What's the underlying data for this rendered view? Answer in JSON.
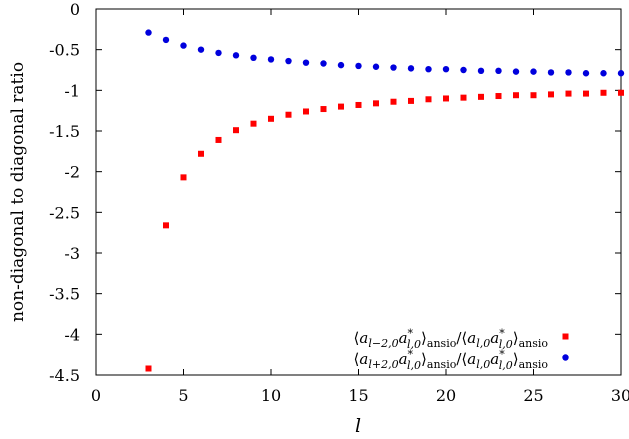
{
  "chart_data": {
    "type": "scatter",
    "title": "",
    "xlabel": "l",
    "ylabel": "non-diagonal to diagonal ratio",
    "xlim": [
      0,
      30
    ],
    "ylim": [
      -4.5,
      0
    ],
    "xticks": [
      0,
      5,
      10,
      15,
      20,
      25,
      30
    ],
    "yticks": [
      0,
      -0.5,
      -1,
      -1.5,
      -2,
      -2.5,
      -3,
      -3.5,
      -4,
      -4.5
    ],
    "xtick_labels": [
      "0",
      "5",
      "10",
      "15",
      "20",
      "25",
      "30"
    ],
    "ytick_labels": [
      "0",
      "-0.5",
      "-1",
      "-1.5",
      "-2",
      "-2.5",
      "-3",
      "-3.5",
      "-4",
      "-4.5"
    ],
    "grid": false,
    "legend_position": "bottom-right",
    "series": [
      {
        "name": "⟨a_{l−2,0} a*_{l,0}⟩_ansio / ⟨a_{l,0} a*_{l,0}⟩_ansio",
        "marker": "square",
        "color": "#ff0000",
        "x": [
          3,
          4,
          5,
          6,
          7,
          8,
          9,
          10,
          11,
          12,
          13,
          14,
          15,
          16,
          17,
          18,
          19,
          20,
          21,
          22,
          23,
          24,
          25,
          26,
          27,
          28,
          29,
          30
        ],
        "y": [
          -4.42,
          -2.66,
          -2.07,
          -1.78,
          -1.61,
          -1.49,
          -1.41,
          -1.35,
          -1.3,
          -1.26,
          -1.23,
          -1.2,
          -1.18,
          -1.16,
          -1.14,
          -1.13,
          -1.11,
          -1.1,
          -1.09,
          -1.08,
          -1.07,
          -1.06,
          -1.06,
          -1.05,
          -1.04,
          -1.04,
          -1.03,
          -1.03
        ]
      },
      {
        "name": "⟨a_{l+2,0} a*_{l,0}⟩_ansio / ⟨a_{l,0} a*_{l,0}⟩_ansio",
        "marker": "circle",
        "color": "#0000dd",
        "x": [
          3,
          4,
          5,
          6,
          7,
          8,
          9,
          10,
          11,
          12,
          13,
          14,
          15,
          16,
          17,
          18,
          19,
          20,
          21,
          22,
          23,
          24,
          25,
          26,
          27,
          28,
          29,
          30
        ],
        "y": [
          -0.29,
          -0.38,
          -0.45,
          -0.5,
          -0.54,
          -0.57,
          -0.6,
          -0.62,
          -0.64,
          -0.66,
          -0.67,
          -0.69,
          -0.7,
          -0.71,
          -0.72,
          -0.73,
          -0.74,
          -0.74,
          -0.75,
          -0.76,
          -0.76,
          -0.77,
          -0.77,
          -0.78,
          -0.78,
          -0.79,
          -0.79,
          -0.79
        ]
      }
    ],
    "legend": [
      {
        "marker": "square",
        "color": "#ff0000",
        "lbr": "⟨",
        "a1": "a",
        "s1": "l−2,0",
        "a2": "a",
        "p2": "*",
        "s2": "l,0",
        "rbr": "⟩",
        "sub": "ansio",
        "slash": "/",
        "lbr2": "⟨",
        "a3": "a",
        "s3": "l,0",
        "a4": "a",
        "p4": "*",
        "s4": "l,0",
        "rbr2": "⟩",
        "sub2": "ansio"
      },
      {
        "marker": "circle",
        "color": "#0000dd",
        "lbr": "⟨",
        "a1": "a",
        "s1": "l+2,0",
        "a2": "a",
        "p2": "*",
        "s2": "l,0",
        "rbr": "⟩",
        "sub": "ansio",
        "slash": "/",
        "lbr2": "⟨",
        "a3": "a",
        "s3": "l,0",
        "a4": "a",
        "p4": "*",
        "s4": "l,0",
        "rbr2": "⟩",
        "sub2": "ansio"
      }
    ]
  }
}
